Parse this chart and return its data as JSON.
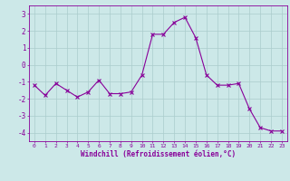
{
  "x": [
    0,
    1,
    2,
    3,
    4,
    5,
    6,
    7,
    8,
    9,
    10,
    11,
    12,
    13,
    14,
    15,
    16,
    17,
    18,
    19,
    20,
    21,
    22,
    23
  ],
  "y": [
    -1.2,
    -1.8,
    -1.1,
    -1.5,
    -1.9,
    -1.6,
    -0.9,
    -1.7,
    -1.7,
    -1.6,
    -0.6,
    1.8,
    1.8,
    2.5,
    2.8,
    1.6,
    -0.6,
    -1.2,
    -1.2,
    -1.1,
    -2.6,
    -3.7,
    -3.9,
    -3.9
  ],
  "line_color": "#880099",
  "marker_color": "#880099",
  "bg_color": "#cce8e8",
  "grid_color": "#aacccc",
  "xlabel": "Windchill (Refroidissement éolien,°C)",
  "xlabel_color": "#880099",
  "tick_color": "#880099",
  "ylim": [
    -4.5,
    3.5
  ],
  "yticks": [
    -4,
    -3,
    -2,
    -1,
    0,
    1,
    2,
    3
  ],
  "xlim": [
    -0.5,
    23.5
  ],
  "xtick_fontsize": 4.5,
  "ytick_fontsize": 5.5,
  "xlabel_fontsize": 5.5
}
